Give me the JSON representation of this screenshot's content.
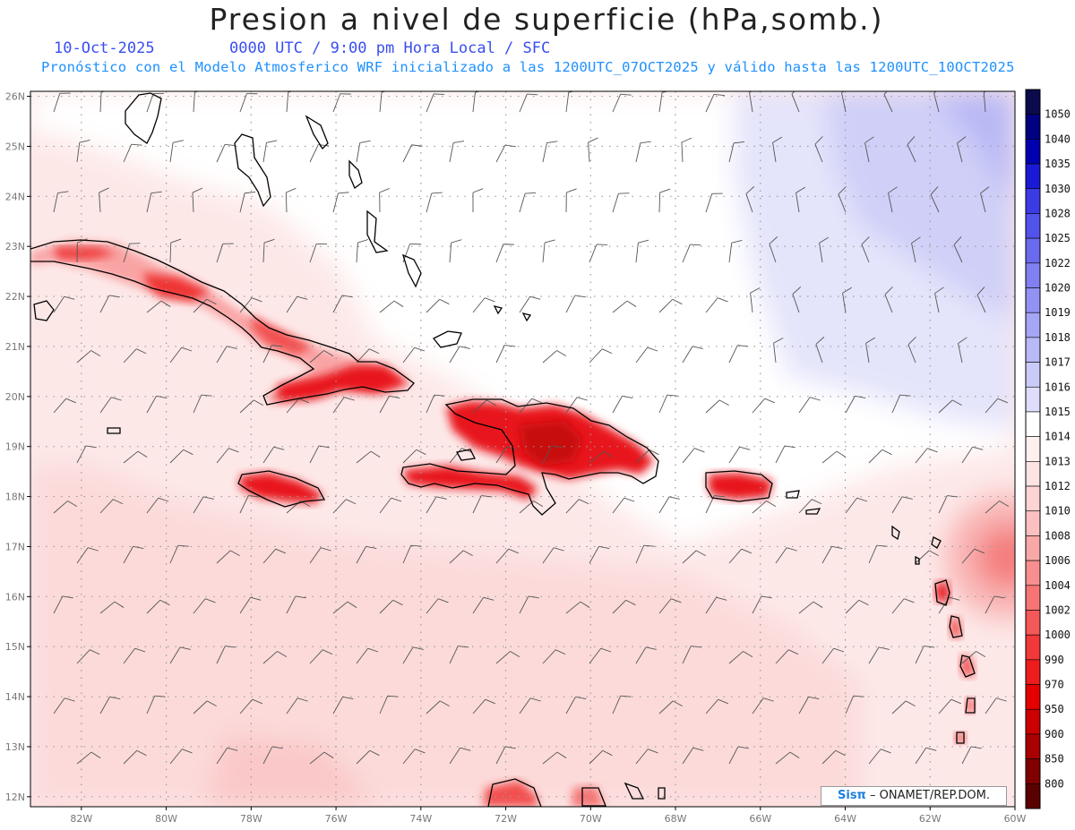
{
  "header": {
    "title": "Presion a nivel de superficie (hPa,somb.)",
    "date": "10-Oct-2025",
    "time": "0000 UTC / 9:00 pm Hora Local / SFC",
    "description": "Pronóstico con el Modelo Atmosferico WRF inicializado a las 1200UTC_07OCT2025 y válido hasta las  1200UTC_10OCT2025"
  },
  "map": {
    "lon_range": [
      -83.2,
      -60
    ],
    "lat_range": [
      11.8,
      26.1
    ],
    "lat_labels": [
      "12N",
      "13N",
      "14N",
      "15N",
      "16N",
      "17N",
      "18N",
      "19N",
      "20N",
      "21N",
      "22N",
      "23N",
      "24N",
      "25N",
      "26N"
    ],
    "lon_labels": [
      "82W",
      "80W",
      "78W",
      "76W",
      "74W",
      "72W",
      "70W",
      "68W",
      "66W",
      "64W",
      "62W",
      "60W"
    ],
    "colors": {
      "high": "#a8a8f5",
      "neutral": "#ffffff",
      "low_light": "#fde4e4",
      "low_medium": "#f98a8a",
      "low_strong": "#e8141e",
      "coast": "#000000",
      "barb": "#555555",
      "grid": "#999999"
    }
  },
  "colorbar": {
    "levels": [
      {
        "label": "1050",
        "color": "#0a0a4d"
      },
      {
        "label": "1040",
        "color": "#000080"
      },
      {
        "label": "1035",
        "color": "#0000b0"
      },
      {
        "label": "1030",
        "color": "#1a1ad6"
      },
      {
        "label": "1028",
        "color": "#3b3be6"
      },
      {
        "label": "1025",
        "color": "#5252ec"
      },
      {
        "label": "1022",
        "color": "#6a6aef"
      },
      {
        "label": "1020",
        "color": "#8080f2"
      },
      {
        "label": "1019",
        "color": "#9292f4"
      },
      {
        "label": "1018",
        "color": "#a6a6f6"
      },
      {
        "label": "1017",
        "color": "#b9b9f8"
      },
      {
        "label": "1016",
        "color": "#cbcbfa"
      },
      {
        "label": "1015",
        "color": "#dedefc"
      },
      {
        "label": "1014",
        "color": "#ffffff"
      },
      {
        "label": "1013",
        "color": "#fff0f0"
      },
      {
        "label": "1012",
        "color": "#fde3e3"
      },
      {
        "label": "1010",
        "color": "#fcd4d4"
      },
      {
        "label": "1008",
        "color": "#fbc0c0"
      },
      {
        "label": "1006",
        "color": "#f9a8a8"
      },
      {
        "label": "1004",
        "color": "#f88f8f"
      },
      {
        "label": "1002",
        "color": "#f67474"
      },
      {
        "label": "1000",
        "color": "#f45858"
      },
      {
        "label": "990",
        "color": "#f23838"
      },
      {
        "label": "970",
        "color": "#ee1c1c"
      },
      {
        "label": "950",
        "color": "#e60000"
      },
      {
        "label": "900",
        "color": "#cc0000"
      },
      {
        "label": "850",
        "color": "#aa0000"
      },
      {
        "label": "800",
        "color": "#800000"
      },
      {
        "label": "",
        "color": "#5a0000"
      }
    ]
  },
  "credit": {
    "logo": "Sisπ",
    "text": " – ONAMET/REP.DOM."
  }
}
